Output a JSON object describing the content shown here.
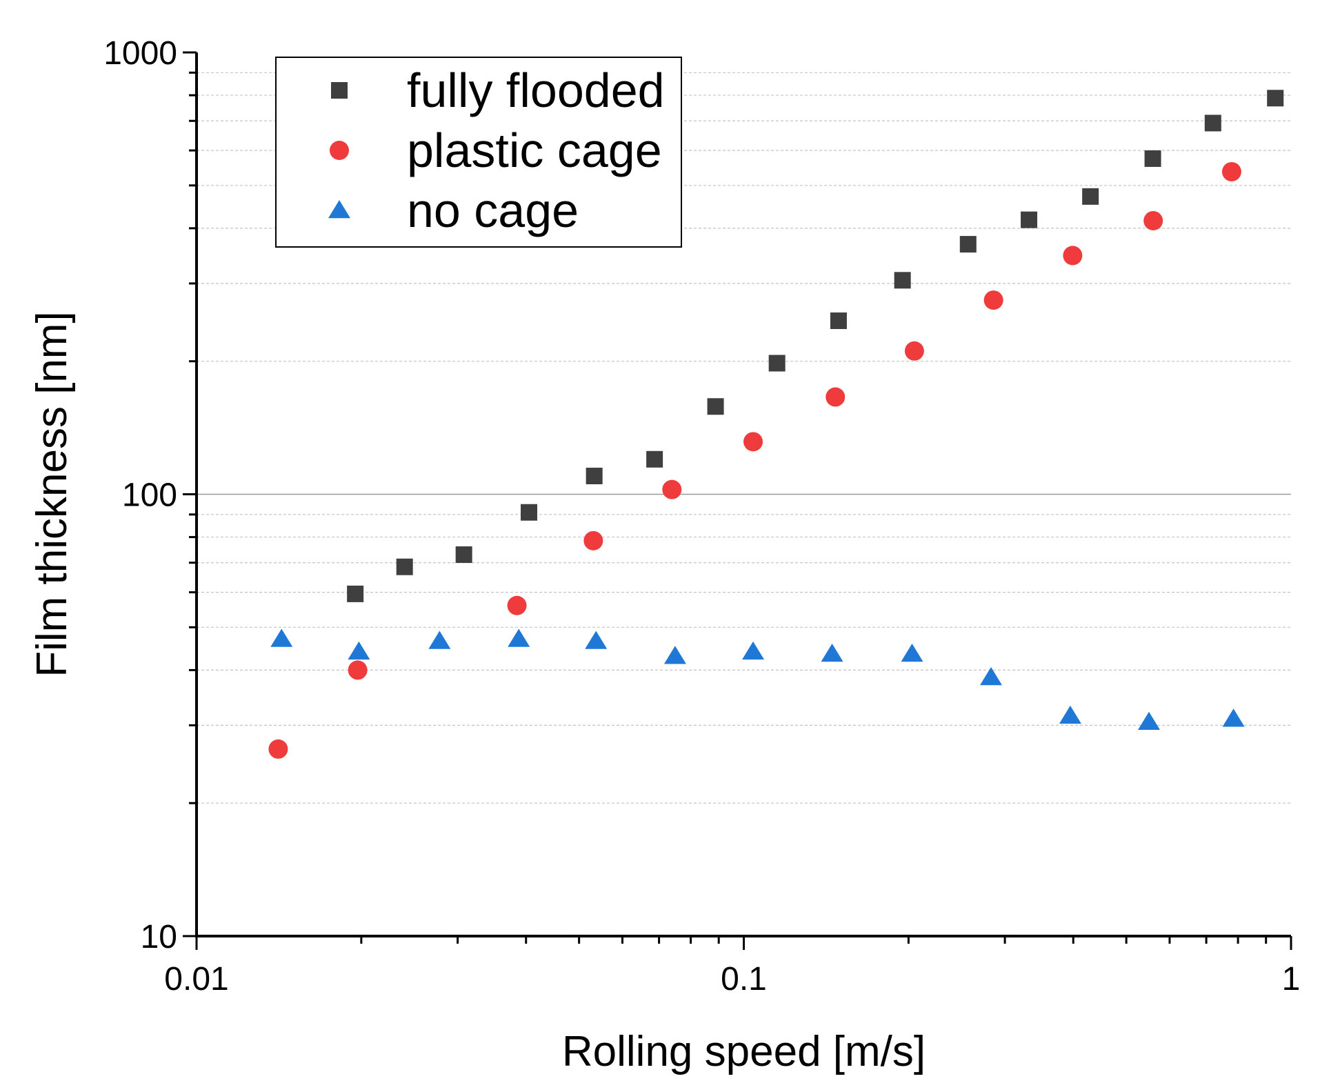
{
  "chart_data": {
    "type": "scatter",
    "title": "",
    "xlabel": "Rolling speed [m/s]",
    "ylabel": "Film thickness [nm]",
    "xscale": "log",
    "yscale": "log",
    "xlim": [
      0.01,
      1
    ],
    "ylim": [
      10,
      1000
    ],
    "x_ticks": [
      {
        "value": 0.01,
        "label": "0.01"
      },
      {
        "value": 0.1,
        "label": "0.1"
      },
      {
        "value": 1,
        "label": "1"
      }
    ],
    "y_ticks": [
      {
        "value": 10,
        "label": "10"
      },
      {
        "value": 100,
        "label": "100"
      },
      {
        "value": 1000,
        "label": "1000"
      }
    ],
    "grid": "horizontal major solid, minor dashed",
    "legend_position": "top-left",
    "series": [
      {
        "name": "fully flooded",
        "marker": "square",
        "color": "#3f3f3f",
        "x": [
          0.0195,
          0.024,
          0.0308,
          0.0405,
          0.0533,
          0.0687,
          0.0888,
          0.115,
          0.149,
          0.195,
          0.257,
          0.332,
          0.43,
          0.559,
          0.72,
          0.936
        ],
        "y": [
          59.5,
          68.5,
          73,
          91,
          110,
          120,
          158,
          198,
          247,
          305,
          368,
          418,
          472,
          575,
          692,
          788
        ]
      },
      {
        "name": "plastic cage",
        "marker": "circle",
        "color": "#ef3b3b",
        "x": [
          0.0141,
          0.0197,
          0.0385,
          0.0531,
          0.0739,
          0.104,
          0.147,
          0.205,
          0.286,
          0.399,
          0.56,
          0.779
        ],
        "y": [
          26.5,
          40,
          56,
          78.5,
          102.5,
          131.5,
          166,
          211,
          275,
          347,
          416,
          537
        ]
      },
      {
        "name": "no cage",
        "marker": "triangle",
        "color": "#1f78d6",
        "x": [
          0.0143,
          0.0198,
          0.0278,
          0.0388,
          0.0537,
          0.0749,
          0.104,
          0.145,
          0.203,
          0.283,
          0.395,
          0.55,
          0.785
        ],
        "y": [
          47,
          44,
          46.5,
          47,
          46.5,
          43,
          44,
          43.5,
          43.5,
          38.5,
          31.5,
          30.5,
          31
        ]
      }
    ]
  }
}
